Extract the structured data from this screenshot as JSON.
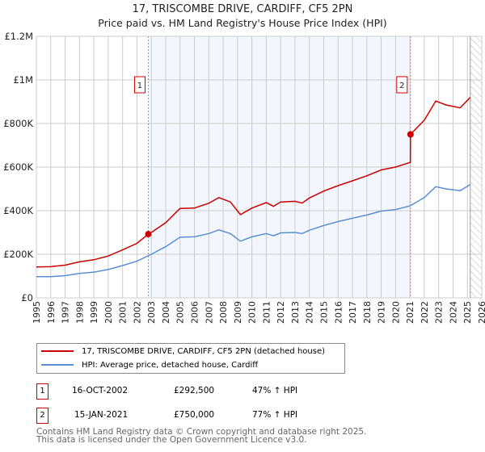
{
  "chart_data": {
    "type": "line",
    "title": "17, TRISCOMBE DRIVE, CARDIFF, CF5 2PN",
    "subtitle": "Price paid vs. HM Land Registry's House Price Index (HPI)",
    "xlim": [
      1995,
      2026
    ],
    "ylim": [
      0,
      1200000
    ],
    "yticks": [
      {
        "v": 0,
        "label": "£0"
      },
      {
        "v": 200000,
        "label": "£200K"
      },
      {
        "v": 400000,
        "label": "£400K"
      },
      {
        "v": 600000,
        "label": "£600K"
      },
      {
        "v": 800000,
        "label": "£800K"
      },
      {
        "v": 1000000,
        "label": "£1M"
      },
      {
        "v": 1200000,
        "label": "£1.2M"
      }
    ],
    "xticks": [
      "1995",
      "1996",
      "1997",
      "1998",
      "1999",
      "2000",
      "2001",
      "2002",
      "2003",
      "2004",
      "2005",
      "2006",
      "2007",
      "2008",
      "2009",
      "2010",
      "2011",
      "2012",
      "2013",
      "2014",
      "2015",
      "2016",
      "2017",
      "2018",
      "2019",
      "2020",
      "2021",
      "2022",
      "2023",
      "2024",
      "2025",
      "2026"
    ],
    "grid": true,
    "series": [
      {
        "name": "17, TRISCOMBE DRIVE, CARDIFF, CF5 2PN (detached house)",
        "color": "#cc0000",
        "x": [
          1995,
          1996,
          1997,
          1998,
          1999,
          2000,
          2001,
          2002,
          2002.79,
          2003,
          2004,
          2005,
          2006,
          2007,
          2007.7,
          2008.5,
          2009.2,
          2010,
          2011,
          2011.5,
          2012,
          2013,
          2013.5,
          2014,
          2015,
          2016,
          2017,
          2018,
          2019,
          2020,
          2021.03,
          2021.04,
          2022,
          2022.8,
          2023.5,
          2024.5,
          2025.2
        ],
        "y": [
          142000,
          143000,
          150000,
          165000,
          175000,
          192000,
          220000,
          250000,
          292500,
          300000,
          345000,
          410000,
          412000,
          434000,
          460000,
          440000,
          382000,
          412000,
          437000,
          420000,
          440000,
          443000,
          435000,
          458000,
          490000,
          515000,
          537000,
          560000,
          587000,
          600000,
          622000,
          750000,
          815000,
          903000,
          885000,
          872000,
          920000
        ]
      },
      {
        "name": "HPI: Average price, detached house, Cardiff",
        "color": "#5b8fd4",
        "x": [
          1995,
          1996,
          1997,
          1998,
          1999,
          2000,
          2001,
          2002,
          2003,
          2004,
          2005,
          2006,
          2007,
          2007.7,
          2008.5,
          2009.2,
          2010,
          2011,
          2011.5,
          2012,
          2013,
          2013.5,
          2014,
          2015,
          2016,
          2017,
          2018,
          2019,
          2020,
          2021,
          2022,
          2022.8,
          2023.5,
          2024.5,
          2025.2
        ],
        "y": [
          97000,
          97000,
          102000,
          112000,
          118000,
          130000,
          148000,
          168000,
          200000,
          235000,
          278000,
          280000,
          295000,
          312000,
          295000,
          260000,
          280000,
          295000,
          285000,
          298000,
          300000,
          295000,
          310000,
          332000,
          350000,
          365000,
          380000,
          398000,
          405000,
          422000,
          460000,
          510000,
          500000,
          492000,
          520000
        ]
      }
    ],
    "sales": [
      {
        "id": "1",
        "x": 2002.79,
        "y": 292500
      },
      {
        "id": "2",
        "x": 2021.04,
        "y": 750000
      }
    ],
    "shaded_range": [
      2002.79,
      2021.04
    ],
    "hatched_from": 2025.2
  },
  "legend": {
    "items": [
      "17, TRISCOMBE DRIVE, CARDIFF, CF5 2PN (detached house)",
      "HPI: Average price, detached house, Cardiff"
    ]
  },
  "transactions": [
    {
      "id": "1",
      "date": "16-OCT-2002",
      "price": "£292,500",
      "hpi": "47% ↑ HPI"
    },
    {
      "id": "2",
      "date": "15-JAN-2021",
      "price": "£750,000",
      "hpi": "77% ↑ HPI"
    }
  ],
  "footer": {
    "line1": "Contains HM Land Registry data © Crown copyright and database right 2025.",
    "line2": "This data is licensed under the Open Government Licence v3.0."
  }
}
